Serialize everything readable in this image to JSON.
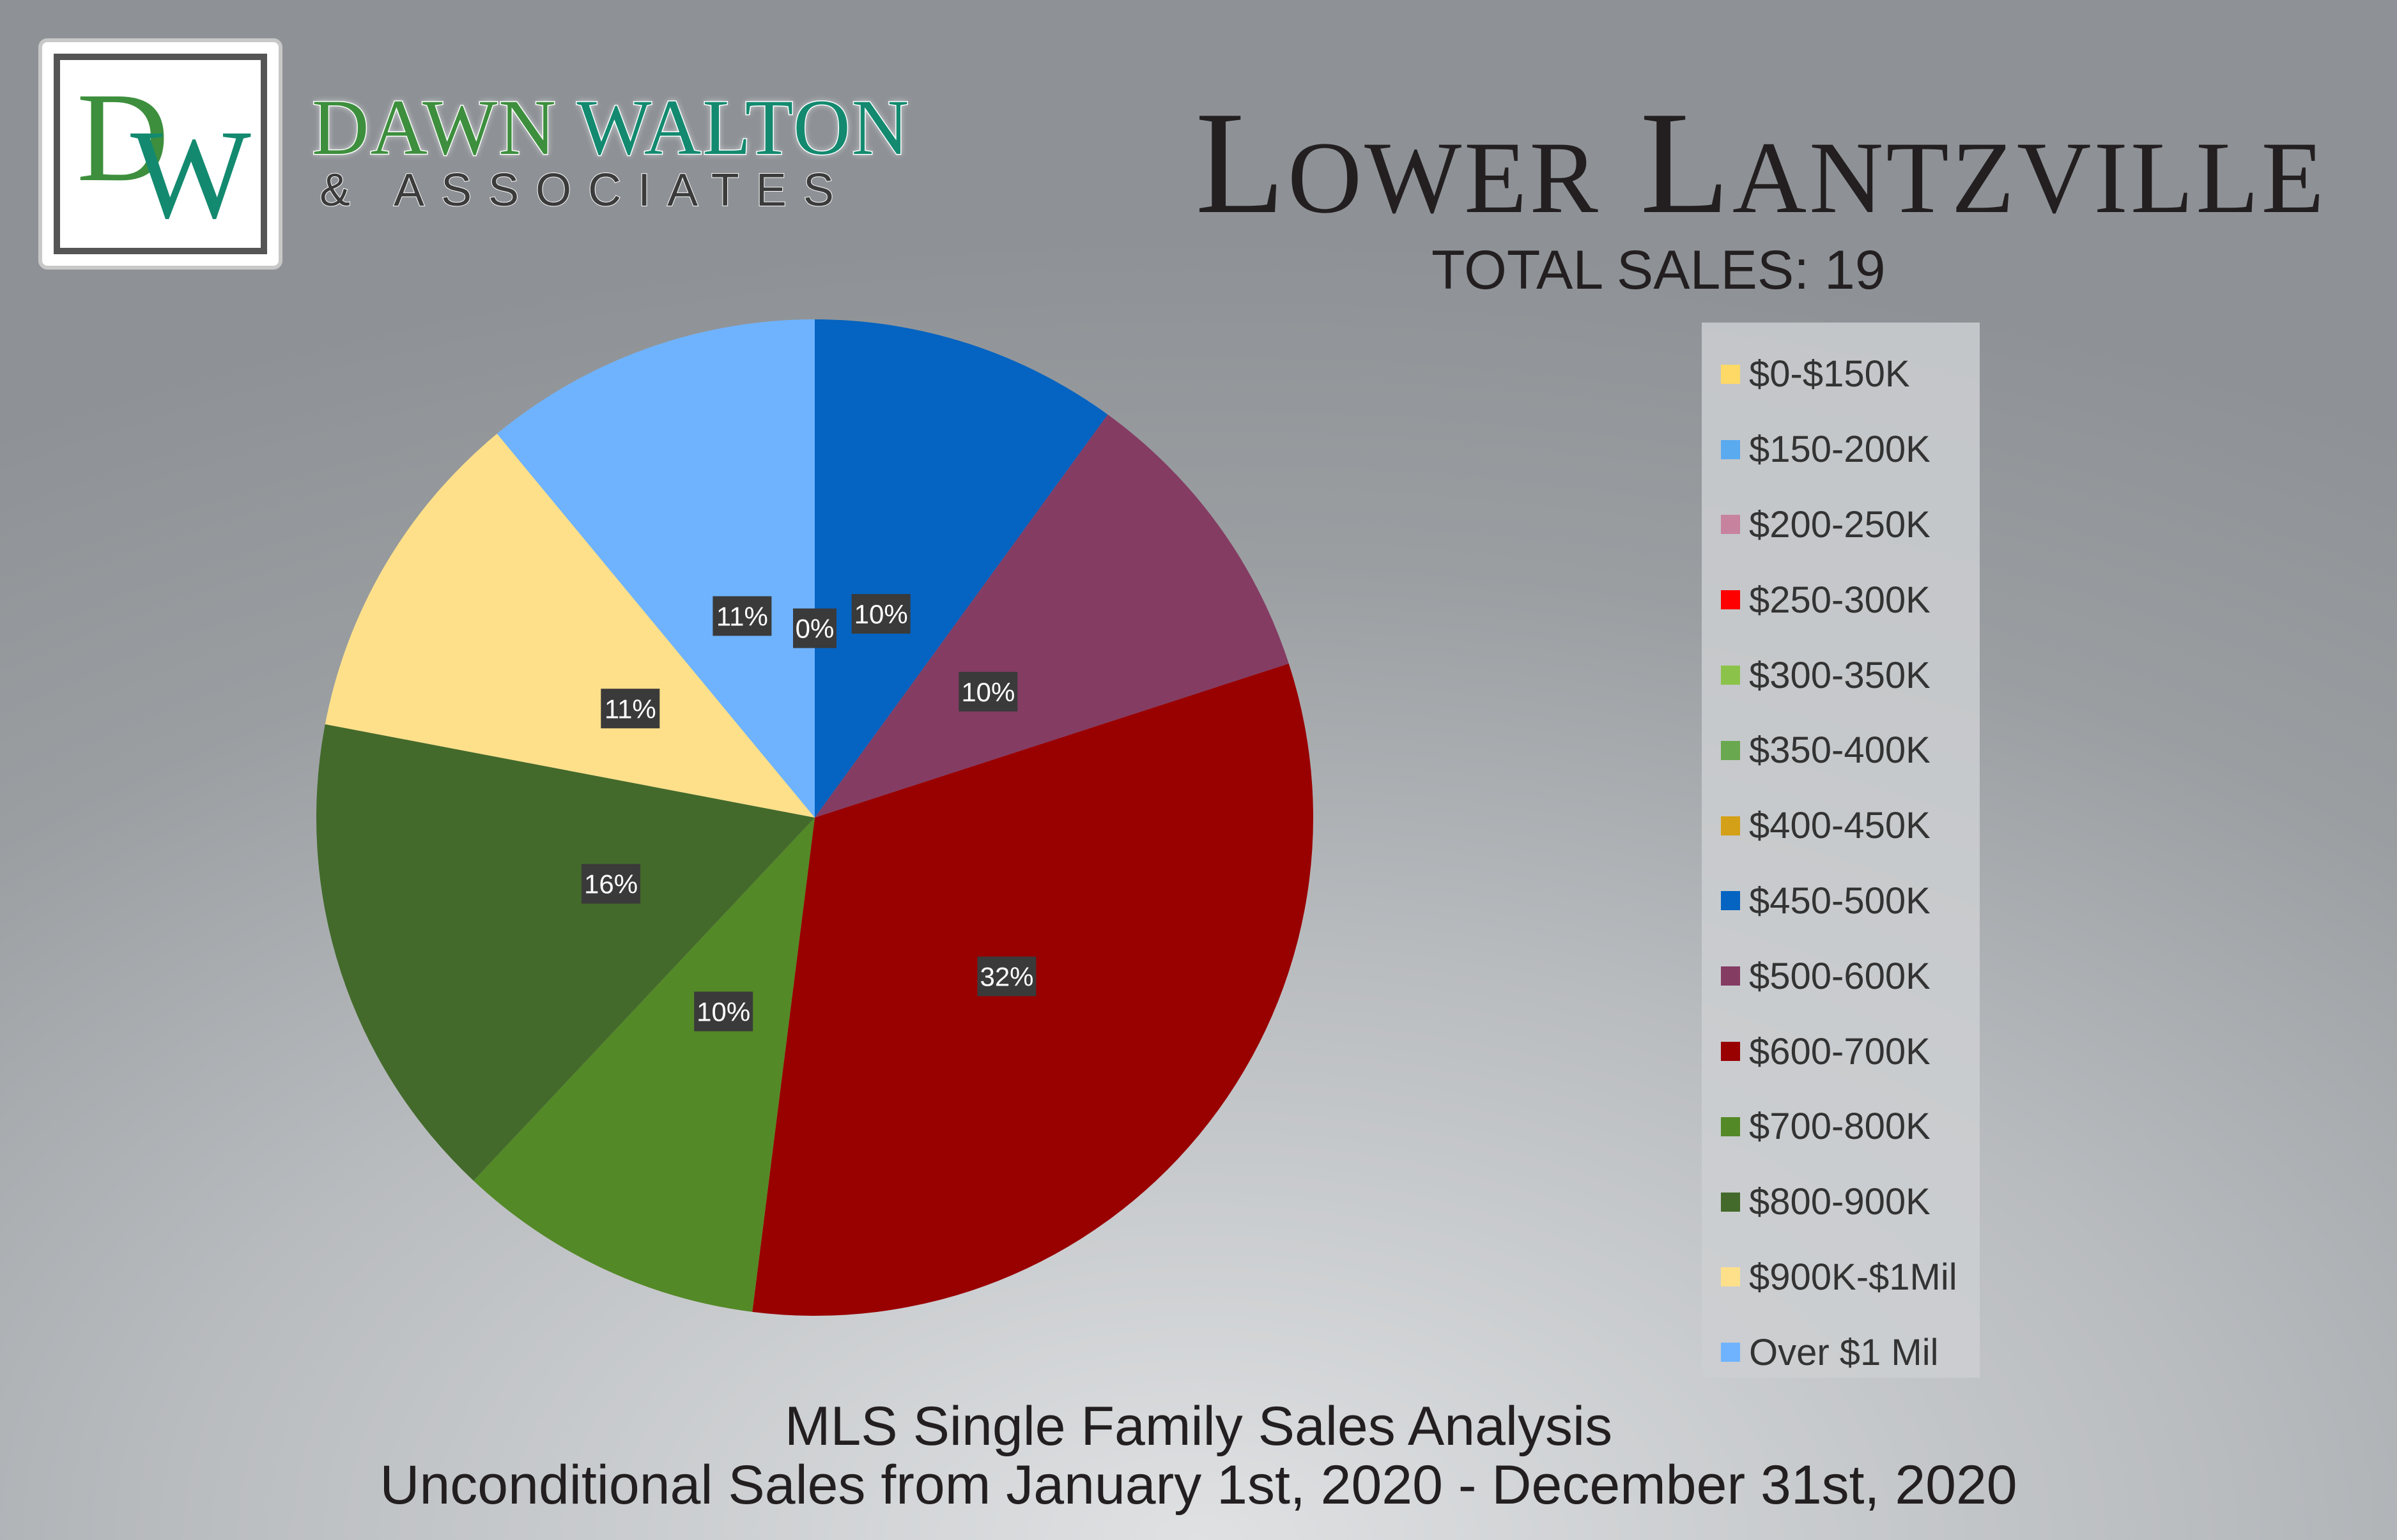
{
  "brand": {
    "logo_letters": "DW",
    "name_first": "DAWN",
    "name_second": "WALTON",
    "subtitle": "& ASSOCIATES"
  },
  "header": {
    "title": "Lower Lantzville",
    "total_sales": "TOTAL SALES: 19"
  },
  "footer": {
    "line1": "MLS Single Family Sales Analysis",
    "line2": "Unconditional Sales from January 1st, 2020 - December 31st, 2020"
  },
  "chart_data": {
    "type": "pie",
    "title": "",
    "categories": [
      "$0-$150K",
      "$150-200K",
      "$200-250K",
      "$250-300K",
      "$300-350K",
      "$350-400K",
      "$400-450K",
      "$450-500K",
      "$500-600K",
      "$600-700K",
      "$700-800K",
      "$800-900K",
      "$900K-$1Mil",
      "Over $1 Mil"
    ],
    "values": [
      0,
      0,
      0,
      0,
      0,
      0,
      0,
      10,
      10,
      32,
      10,
      16,
      11,
      11
    ],
    "value_labels": [
      "0%",
      "",
      "",
      "",
      "",
      "",
      "",
      "10%",
      "10%",
      "32%",
      "10%",
      "16%",
      "11%",
      "11%"
    ],
    "colors": [
      "#ffd966",
      "#5aaaf0",
      "#c7829e",
      "#ff0000",
      "#8bc34a",
      "#6aa84f",
      "#d4a017",
      "#0563c1",
      "#843c63",
      "#990000",
      "#548927",
      "#436a2b",
      "#ffe08a",
      "#6fb3ff"
    ],
    "legend": "right",
    "start": "top",
    "direction": "clockwise"
  }
}
